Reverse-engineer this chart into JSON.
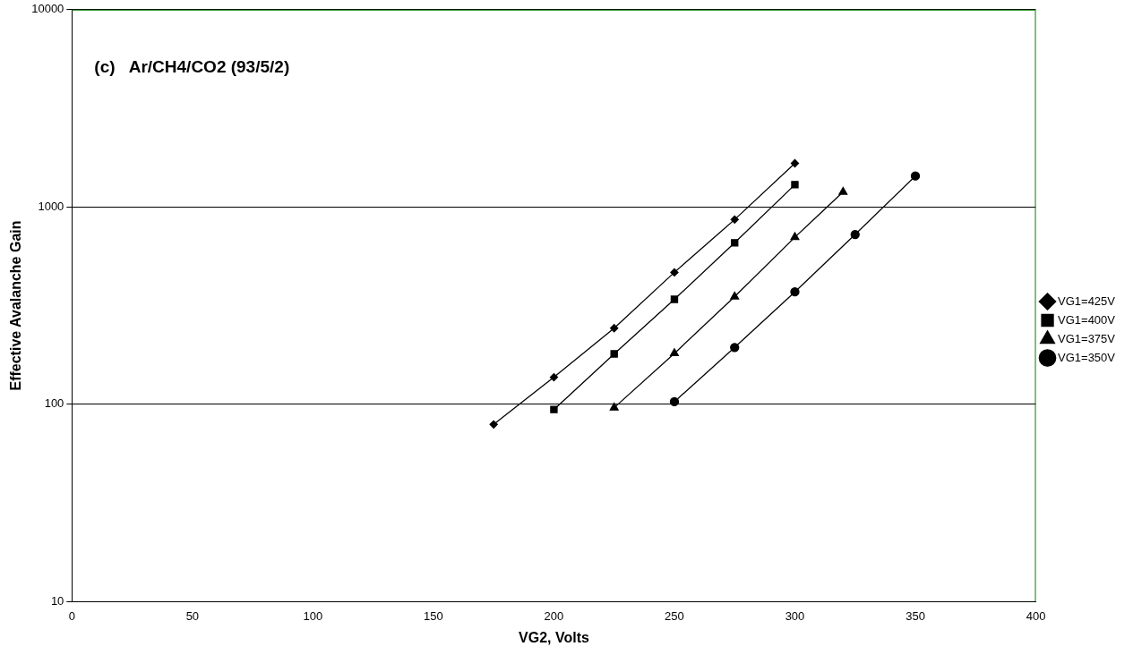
{
  "chart_data": {
    "type": "line",
    "xlabel": "VG2, Volts",
    "ylabel": "Effective Avalanche Gain",
    "annotations": [
      "(c)   Ar/CH4/CO2 (93/5/2)"
    ],
    "log": "y",
    "xlim": [
      0,
      400
    ],
    "xticks": [
      0,
      50,
      100,
      150,
      200,
      250,
      300,
      350,
      400
    ],
    "ylim": [
      10,
      10000
    ],
    "yticks": [
      10,
      100,
      1000,
      10000
    ],
    "grid": "y",
    "legend": "right",
    "series": [
      {
        "name": "VG1=425V",
        "color": "#000000",
        "marker": "diamond",
        "x": [
          175,
          200,
          225,
          250,
          275,
          300
        ],
        "values": [
          79,
          137,
          243,
          466,
          863,
          1664
        ]
      },
      {
        "name": "VG1=400V",
        "color": "#000000",
        "marker": "square",
        "x": [
          200,
          225,
          250,
          275,
          300
        ],
        "values": [
          94,
          180,
          340,
          658,
          1297
        ]
      },
      {
        "name": "VG1=375V",
        "color": "#000000",
        "marker": "triangle",
        "x": [
          225,
          250,
          275,
          300,
          320
        ],
        "values": [
          96,
          181,
          351,
          702,
          1191
        ]
      },
      {
        "name": "VG1=350V",
        "color": "#000000",
        "marker": "circle",
        "x": [
          250,
          275,
          300,
          325,
          350
        ],
        "values": [
          103,
          194,
          371,
          725,
          1435
        ]
      }
    ]
  }
}
